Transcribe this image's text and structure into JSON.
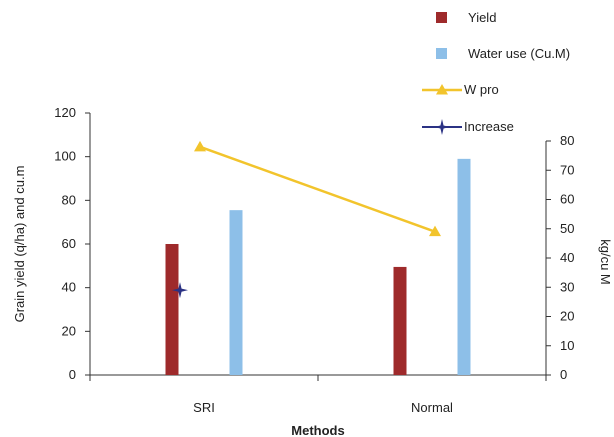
{
  "chart_data": {
    "type": "bar",
    "title": "",
    "xlabel": "Methods",
    "ylabel": "Grain yield (q/ha) and cu.m",
    "y2label": "kg/cu M",
    "categories": [
      "SRI",
      "Normal"
    ],
    "ylim": [
      0,
      120
    ],
    "y2lim": [
      0,
      80
    ],
    "yticks": [
      "0",
      "20",
      "40",
      "60",
      "80",
      "100",
      "120"
    ],
    "y2ticks": [
      "0",
      "10",
      "20",
      "30",
      "40",
      "50",
      "60",
      "70",
      "80"
    ],
    "grid": false,
    "legend_position": "top-right",
    "series": [
      {
        "name": "Yield",
        "kind": "bar",
        "axis": "left",
        "color": "#9e2a2b",
        "values": [
          60,
          49.5
        ]
      },
      {
        "name": "Water use (Cu.M)",
        "kind": "bar",
        "axis": "left",
        "color": "#8dbfe8",
        "values": [
          75.5,
          99
        ]
      },
      {
        "name": "W pro",
        "kind": "line",
        "axis": "right",
        "color": "#f2c42c",
        "marker": "triangle",
        "values": [
          78,
          49
        ]
      },
      {
        "name": "Increase",
        "kind": "point",
        "axis": "right",
        "color": "#2b3284",
        "marker": "star",
        "values": [
          29,
          null
        ]
      }
    ]
  }
}
